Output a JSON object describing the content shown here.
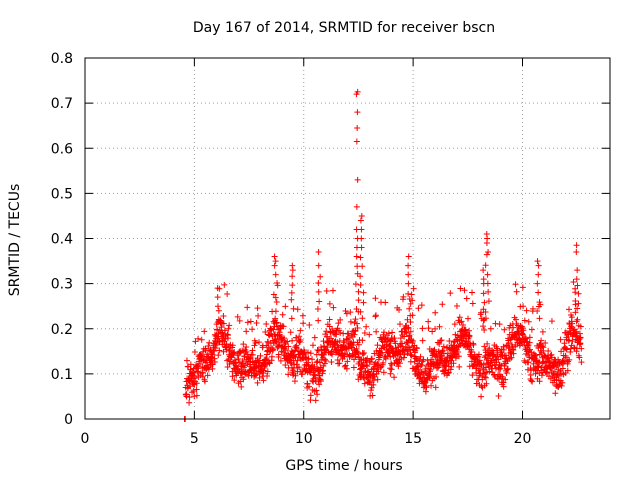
{
  "chart_data": {
    "type": "scatter",
    "title": "Day 167 of 2014, SRMTID for receiver bscn",
    "xlabel": "GPS time / hours",
    "ylabel": "SRMTID / TECUs",
    "xlim": [
      0,
      24
    ],
    "ylim": [
      0,
      0.8
    ],
    "xticks": [
      0,
      5,
      10,
      15,
      20
    ],
    "xtick_labels": [
      "0",
      "5",
      "10",
      "15",
      "20"
    ],
    "yticks": [
      0,
      0.1,
      0.2,
      0.3,
      0.4,
      0.5,
      0.6,
      0.7,
      0.8
    ],
    "ytick_labels": [
      "0",
      "0.1",
      "0.2",
      "0.3",
      "0.4",
      "0.5",
      "0.6",
      "0.7",
      "0.8"
    ],
    "grid": true,
    "marker": "+",
    "series": [
      {
        "name": "SRMTID",
        "color": "#ff0000",
        "x_range": [
          4.6,
          22.7
        ],
        "baseline": 0.14,
        "spread": 0.045,
        "samples": 1800,
        "zero_points": [
          [
            4.55,
            0.0
          ],
          [
            4.58,
            0.0
          ]
        ],
        "spikes": [
          {
            "x": 6.1,
            "ys": [
              0.29,
              0.27,
              0.25,
              0.24
            ]
          },
          {
            "x": 8.7,
            "ys": [
              0.36,
              0.35,
              0.34,
              0.32
            ]
          },
          {
            "x": 9.5,
            "ys": [
              0.34,
              0.33
            ]
          },
          {
            "x": 10.7,
            "ys": [
              0.37,
              0.34
            ]
          },
          {
            "x": 12.45,
            "ys": [
              0.725,
              0.72,
              0.68,
              0.645,
              0.615,
              0.53,
              0.47,
              0.42,
              0.4,
              0.38,
              0.36
            ]
          },
          {
            "x": 12.65,
            "ys": [
              0.45,
              0.44,
              0.42,
              0.4,
              0.38
            ]
          },
          {
            "x": 14.8,
            "ys": [
              0.36,
              0.34,
              0.32,
              0.3
            ]
          },
          {
            "x": 18.4,
            "ys": [
              0.41,
              0.4,
              0.39,
              0.37
            ]
          },
          {
            "x": 18.2,
            "ys": [
              0.33,
              0.31,
              0.3
            ]
          },
          {
            "x": 20.7,
            "ys": [
              0.35,
              0.34,
              0.32,
              0.3
            ]
          },
          {
            "x": 22.5,
            "ys": [
              0.385,
              0.37,
              0.33,
              0.31
            ]
          }
        ]
      }
    ]
  }
}
